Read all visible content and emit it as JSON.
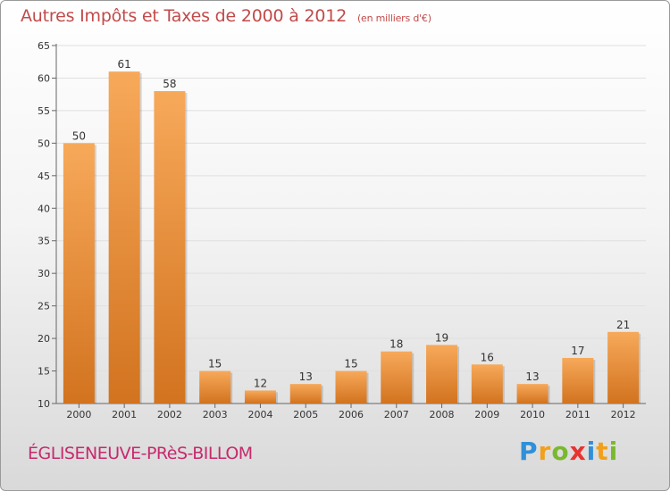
{
  "header": {
    "title": "Autres Impôts et Taxes de 2000 à 2012",
    "unit": "(en milliers d'€)"
  },
  "footer": {
    "commune": "ÉGLISENEUVE-PRèS-BILLOM",
    "logo_letters": [
      "P",
      "r",
      "o",
      "x",
      "i",
      "t",
      "i"
    ],
    "logo_colors": [
      "#2f8fd8",
      "#f2a01b",
      "#7ab82e",
      "#e8332f",
      "#2f8fd8",
      "#f2a01b",
      "#7ab82e"
    ]
  },
  "colors": {
    "bar_light": "#f7a95a",
    "bar_dark": "#d2731f",
    "axis": "#666666",
    "grid": "#e0e0e0",
    "label": "#333333"
  },
  "chart_data": {
    "type": "bar",
    "title": "Autres Impôts et Taxes de 2000 à 2012",
    "subtitle": "(en milliers d'€)",
    "categories": [
      "2000",
      "2001",
      "2002",
      "2003",
      "2004",
      "2005",
      "2006",
      "2007",
      "2008",
      "2009",
      "2010",
      "2011",
      "2012"
    ],
    "values": [
      50,
      61,
      58,
      15,
      12,
      13,
      15,
      18,
      19,
      16,
      13,
      17,
      21
    ],
    "ylim": [
      10,
      65
    ],
    "yticks": [
      10,
      15,
      20,
      25,
      30,
      35,
      40,
      45,
      50,
      55,
      60,
      65
    ],
    "grid": true,
    "legend": "none"
  }
}
